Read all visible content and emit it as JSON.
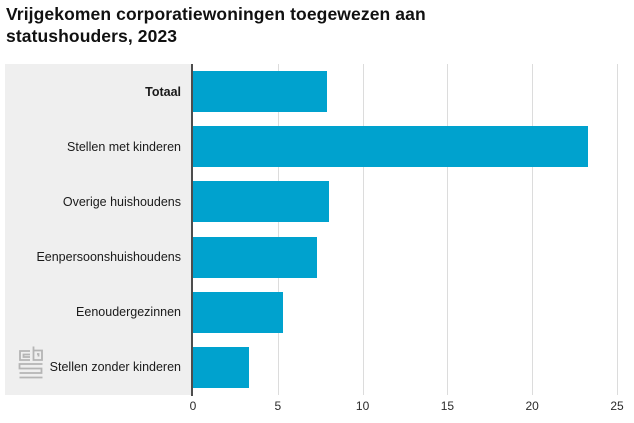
{
  "title": "Vrijgekomen corporatiewoningen toegewezen aan statushouders, 2023",
  "colors": {
    "bar": "#00a2ce",
    "label_panel": "#efefef",
    "gridline": "#dcdcdc",
    "axis_line": "#4d4d4d",
    "title_text": "#111111",
    "logo_gray": "#b5b5b5"
  },
  "logo": {
    "name": "cbs-logo"
  },
  "chart_data": {
    "type": "bar",
    "orientation": "horizontal",
    "title": "Vrijgekomen corporatiewoningen toegewezen aan statushouders, 2023",
    "categories": [
      "Totaal",
      "Stellen met kinderen",
      "Overige huishoudens",
      "Eenpersoonshuishoudens",
      "Eenoudergezinnen",
      "Stellen zonder kinderen"
    ],
    "values": [
      7.9,
      23.3,
      8.0,
      7.3,
      5.3,
      3.3
    ],
    "emphasized_category": "Totaal",
    "xlabel": "",
    "ylabel": "",
    "xlim": [
      0,
      25
    ],
    "xticks": [
      0,
      5,
      10,
      15,
      20,
      25
    ],
    "grid": true,
    "legend": false
  }
}
